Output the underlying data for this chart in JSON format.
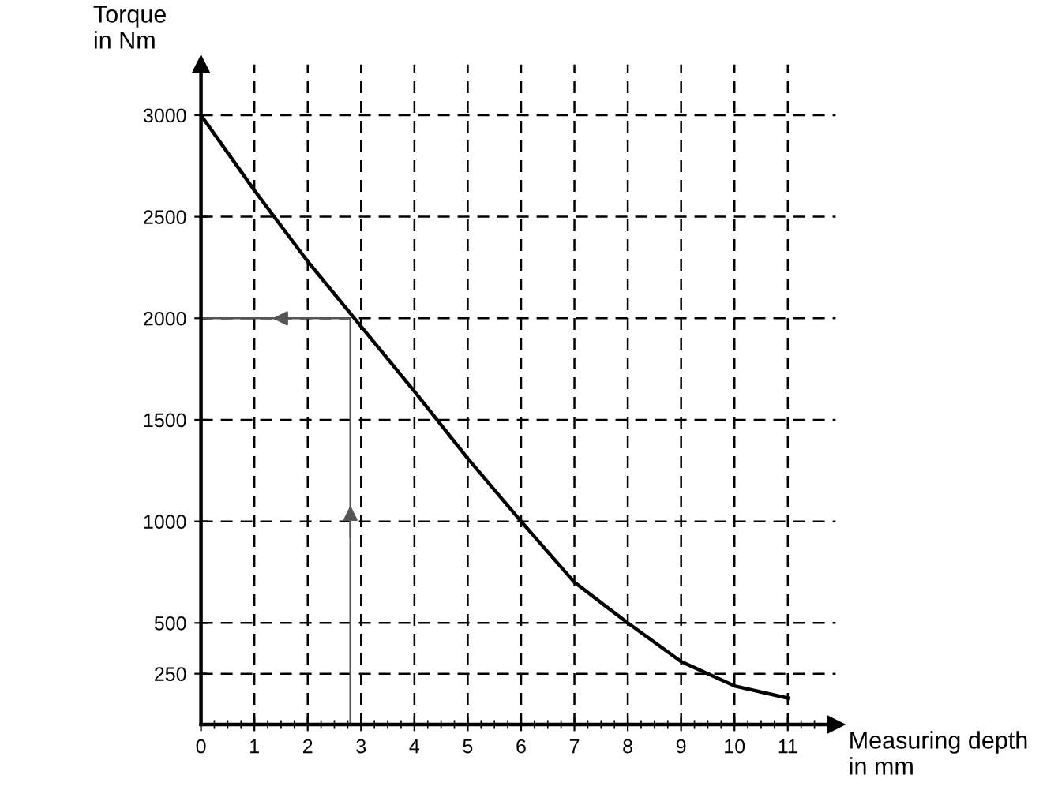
{
  "chart_data": {
    "type": "line",
    "xlabel": "Measuring depth\nin mm",
    "ylabel": "Torque\nin Nm",
    "xlim": [
      0,
      11.9
    ],
    "ylim": [
      0,
      3250
    ],
    "xticks": [
      0,
      1,
      2,
      3,
      4,
      5,
      6,
      7,
      8,
      9,
      10,
      11
    ],
    "yticks": [
      250,
      500,
      1000,
      1500,
      2000,
      2500,
      3000
    ],
    "grid": true,
    "marker": "none",
    "series": [
      {
        "color": "#000000",
        "line_style": "solid",
        "x": [
          0,
          1,
          2,
          3,
          4,
          5,
          6,
          7,
          8,
          9,
          10,
          11
        ],
        "values": [
          3000,
          2630,
          2280,
          1960,
          1640,
          1310,
          1000,
          700,
          500,
          310,
          190,
          130
        ]
      },
      {
        "color": "#555555",
        "line_style": "solid",
        "x": [
          2.8,
          2.8,
          0
        ],
        "values": [
          0,
          2000,
          2000
        ]
      }
    ]
  }
}
